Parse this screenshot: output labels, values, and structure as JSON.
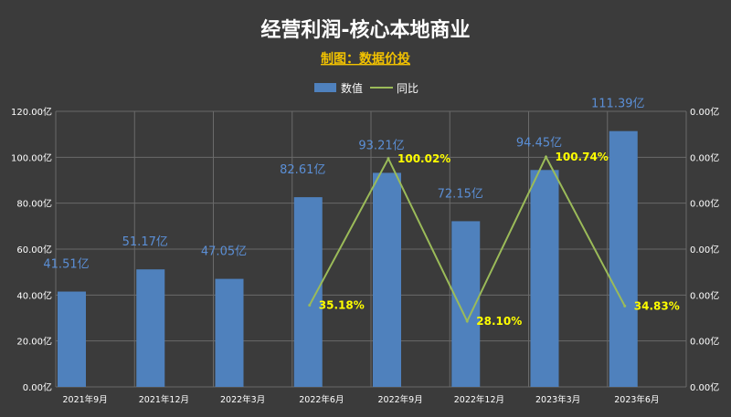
{
  "chart_data": {
    "type": "bar",
    "title": "经营利润-核心本地商业",
    "subtitle": "制图：数据价投",
    "categories": [
      "2021年9月",
      "2021年12月",
      "2022年3月",
      "2022年6月",
      "2022年9月",
      "2022年12月",
      "2023年3月",
      "2023年6月"
    ],
    "series": [
      {
        "name": "数值",
        "type": "bar",
        "axis": "left",
        "values": [
          41.51,
          51.17,
          47.05,
          82.61,
          93.21,
          72.15,
          94.45,
          111.39
        ],
        "labels": [
          "41.51亿",
          "51.17亿",
          "47.05亿",
          "82.61亿",
          "93.21亿",
          "72.15亿",
          "94.45亿",
          "111.39亿"
        ],
        "color": "#4f81bd"
      },
      {
        "name": "同比",
        "type": "line",
        "axis": "right",
        "values": [
          null,
          null,
          null,
          35.18,
          100.02,
          28.1,
          100.74,
          34.83
        ],
        "labels": [
          "",
          "",
          "",
          "35.18%",
          "100.02%",
          "28.10%",
          "100.74%",
          "34.83%"
        ],
        "color": "#9bbb59"
      }
    ],
    "y_left": {
      "ylim": [
        0,
        120
      ],
      "ticks": [
        "0.00亿",
        "20.00亿",
        "40.00亿",
        "60.00亿",
        "80.00亿",
        "100.00亿",
        "120.00亿"
      ]
    },
    "y_right": {
      "ticks": [
        "0.00亿",
        "0.00亿",
        "0.00亿",
        "0.00亿",
        "0.00亿",
        "0.00亿",
        "0.00亿"
      ]
    },
    "grid": true,
    "legend_position": "top-center"
  }
}
